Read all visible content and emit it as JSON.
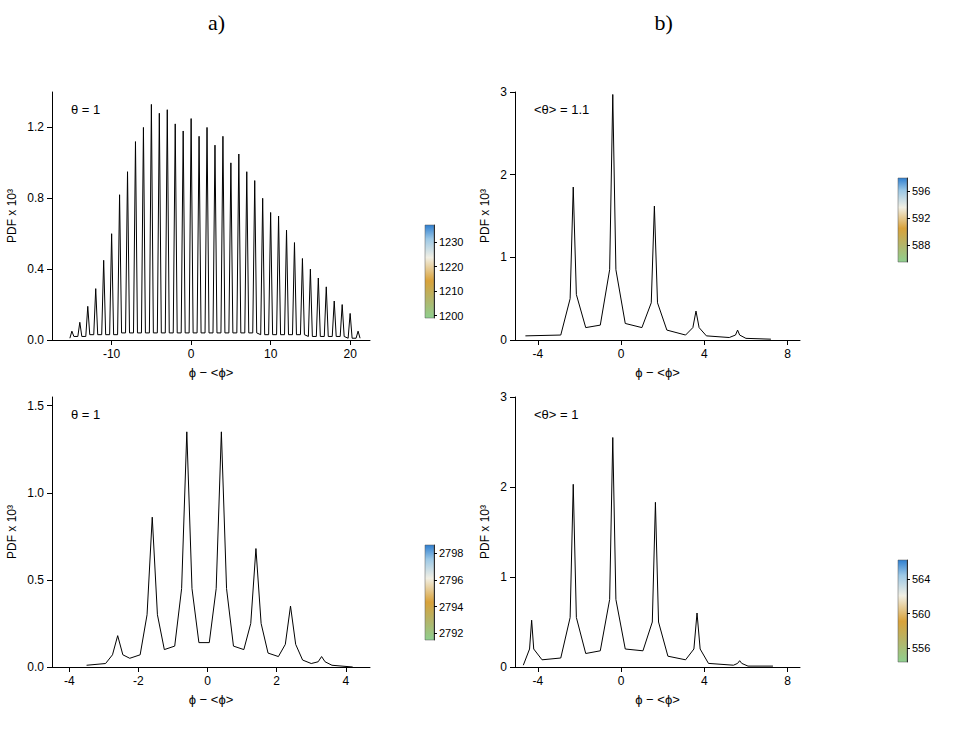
{
  "chart_data": [
    {
      "type": "line",
      "panel": "a)",
      "title": "θ = 1",
      "x_label": "ϕ − <ϕ>",
      "y_label": "PDF x 10³",
      "grid": false,
      "xlim": [
        -17.5,
        22.5
      ],
      "xticks": [
        -10,
        0,
        10,
        20
      ],
      "ylim": [
        0,
        1.4
      ],
      "yticks": [
        {
          "value": 0,
          "label": "0.0"
        },
        0.4,
        0.8,
        1.2
      ],
      "colorbar": {
        "range": [
          1199,
          1237
        ],
        "ticks": [
          1200,
          1210,
          1220,
          1230
        ]
      },
      "series": [
        {
          "color": "#000000",
          "x": [
            -15.25,
            -15,
            -14.75,
            -14.25,
            -14,
            -13.75,
            -13.25,
            -13,
            -12.75,
            -12.25,
            -12,
            -11.75,
            -11.25,
            -11,
            -10.75,
            -10.25,
            -10,
            -9.75,
            -9.25,
            -9,
            -8.75,
            -8.25,
            -8,
            -7.75,
            -7.25,
            -7,
            -6.75,
            -6.25,
            -6,
            -5.75,
            -5.25,
            -5,
            -4.75,
            -4.25,
            -4,
            -3.75,
            -3.25,
            -3,
            -2.75,
            -2.25,
            -2,
            -1.75,
            -1.25,
            -1,
            -0.75,
            -0.25,
            0,
            0.25,
            0.75,
            1,
            1.25,
            1.75,
            2,
            2.25,
            2.75,
            3,
            3.25,
            3.75,
            4,
            4.25,
            4.75,
            5,
            5.25,
            5.75,
            6,
            6.25,
            6.75,
            7,
            7.25,
            7.75,
            8,
            8.25,
            8.75,
            9,
            9.25,
            9.75,
            10,
            10.25,
            10.75,
            11,
            11.25,
            11.75,
            12,
            12.25,
            12.75,
            13,
            13.25,
            13.75,
            14,
            14.25,
            14.75,
            15,
            15.25,
            15.75,
            16,
            16.25,
            16.75,
            17,
            17.25,
            17.75,
            18,
            18.25,
            18.75,
            19,
            19.25,
            19.75,
            20,
            20.25,
            20.75,
            21,
            21.25
          ],
          "values": [
            0.01,
            0.05,
            0.02,
            0.02,
            0.1,
            0.02,
            0.02,
            0.19,
            0.03,
            0.03,
            0.29,
            0.03,
            0.03,
            0.45,
            0.03,
            0.03,
            0.6,
            0.03,
            0.03,
            0.82,
            0.04,
            0.04,
            0.95,
            0.04,
            0.04,
            1.12,
            0.04,
            0.04,
            1.2,
            0.04,
            0.04,
            1.33,
            0.04,
            0.04,
            1.28,
            0.04,
            0.04,
            1.3,
            0.04,
            0.04,
            1.22,
            0.04,
            0.04,
            1.18,
            0.04,
            0.04,
            1.25,
            0.04,
            0.04,
            1.15,
            0.04,
            0.04,
            1.2,
            0.04,
            0.04,
            1.1,
            0.04,
            0.04,
            1.15,
            0.04,
            0.04,
            1.0,
            0.04,
            0.04,
            1.05,
            0.04,
            0.04,
            0.95,
            0.04,
            0.04,
            0.9,
            0.04,
            0.03,
            0.8,
            0.03,
            0.03,
            0.72,
            0.03,
            0.03,
            0.7,
            0.03,
            0.03,
            0.62,
            0.03,
            0.03,
            0.55,
            0.03,
            0.03,
            0.46,
            0.03,
            0.02,
            0.4,
            0.02,
            0.02,
            0.35,
            0.02,
            0.02,
            0.3,
            0.02,
            0.02,
            0.22,
            0.02,
            0.02,
            0.2,
            0.02,
            0.01,
            0.15,
            0.01,
            0.01,
            0.05,
            0.01
          ]
        }
      ]
    },
    {
      "type": "line",
      "title": "θ = 1",
      "x_label": "ϕ − <ϕ>",
      "y_label": "PDF x 10³",
      "grid": false,
      "xlim": [
        -4.5,
        4.7
      ],
      "xticks": [
        -4,
        -2,
        0,
        2,
        4
      ],
      "ylim": [
        0,
        1.55
      ],
      "yticks": [
        {
          "value": 0,
          "label": "0.0"
        },
        0.5,
        {
          "value": 1,
          "label": "1.0"
        },
        1.5
      ],
      "colorbar": {
        "range": [
          2791.5,
          2798.6
        ],
        "ticks": [
          2792,
          2794,
          2796,
          2798
        ]
      },
      "series": [
        {
          "color": "#000000",
          "x": [
            -3.5,
            -2.95,
            -2.75,
            -2.6,
            -2.45,
            -2.25,
            -1.95,
            -1.75,
            -1.6,
            -1.45,
            -1.25,
            -0.95,
            -0.75,
            -0.6,
            -0.45,
            -0.25,
            0.05,
            0.25,
            0.4,
            0.55,
            0.75,
            1.05,
            1.25,
            1.4,
            1.55,
            1.75,
            2.05,
            2.25,
            2.4,
            2.55,
            2.75,
            3.0,
            3.2,
            3.3,
            3.4,
            3.6,
            4.2
          ],
          "values": [
            0.01,
            0.02,
            0.07,
            0.18,
            0.07,
            0.05,
            0.07,
            0.3,
            0.86,
            0.3,
            0.1,
            0.12,
            0.45,
            1.35,
            0.45,
            0.14,
            0.14,
            0.45,
            1.35,
            0.45,
            0.12,
            0.1,
            0.25,
            0.68,
            0.25,
            0.08,
            0.06,
            0.13,
            0.35,
            0.13,
            0.04,
            0.02,
            0.03,
            0.06,
            0.03,
            0.01,
            0
          ]
        }
      ]
    },
    {
      "type": "line",
      "panel": "b)",
      "title": "<θ> = 1.1",
      "x_label": "ϕ − <ϕ>",
      "y_label": "PDF x 10³",
      "grid": false,
      "xlim": [
        -5.1,
        8.6
      ],
      "xticks": [
        -4,
        0,
        4,
        8
      ],
      "ylim": [
        0,
        3
      ],
      "yticks": [
        0,
        1,
        2,
        3
      ],
      "colorbar": {
        "range": [
          585.5,
          597.9
        ],
        "ticks": [
          588,
          592,
          596
        ]
      },
      "series": [
        {
          "color": "#000000",
          "x": [
            -4.6,
            -2.9,
            -2.45,
            -2.3,
            -2.15,
            -1.7,
            -1.0,
            -0.55,
            -0.4,
            -0.25,
            0.2,
            1.0,
            1.45,
            1.6,
            1.75,
            2.2,
            3.1,
            3.45,
            3.6,
            3.75,
            4.1,
            5.2,
            5.5,
            5.6,
            5.7,
            6.0,
            7.2
          ],
          "values": [
            0.05,
            0.06,
            0.5,
            1.85,
            0.55,
            0.15,
            0.18,
            0.85,
            2.97,
            0.85,
            0.2,
            0.15,
            0.45,
            1.62,
            0.45,
            0.12,
            0.06,
            0.15,
            0.35,
            0.15,
            0.05,
            0.03,
            0.06,
            0.12,
            0.06,
            0.02,
            0.01
          ]
        }
      ]
    },
    {
      "type": "line",
      "title": "<θ> = 1",
      "x_label": "ϕ − <ϕ>",
      "y_label": "PDF x 10³",
      "grid": false,
      "xlim": [
        -5.1,
        8.6
      ],
      "xticks": [
        -4,
        0,
        4,
        8
      ],
      "ylim": [
        0,
        3
      ],
      "yticks": [
        0,
        1,
        2,
        3
      ],
      "colorbar": {
        "range": [
          554.4,
          566.2
        ],
        "ticks": [
          556,
          560,
          564
        ]
      },
      "series": [
        {
          "color": "#000000",
          "x": [
            -4.7,
            -4.4,
            -4.3,
            -4.2,
            -3.8,
            -2.9,
            -2.45,
            -2.3,
            -2.15,
            -1.7,
            -1.0,
            -0.55,
            -0.4,
            -0.25,
            0.2,
            1.05,
            1.5,
            1.65,
            1.8,
            2.25,
            3.1,
            3.5,
            3.65,
            3.8,
            4.2,
            5.4,
            5.6,
            5.7,
            5.8,
            6.1,
            7.3
          ],
          "values": [
            0.02,
            0.2,
            0.52,
            0.2,
            0.08,
            0.1,
            0.55,
            2.03,
            0.55,
            0.15,
            0.18,
            0.75,
            2.55,
            0.75,
            0.2,
            0.18,
            0.5,
            1.83,
            0.5,
            0.12,
            0.08,
            0.2,
            0.6,
            0.2,
            0.04,
            0.02,
            0.04,
            0.07,
            0.04,
            0.01,
            0.01
          ]
        }
      ]
    }
  ]
}
